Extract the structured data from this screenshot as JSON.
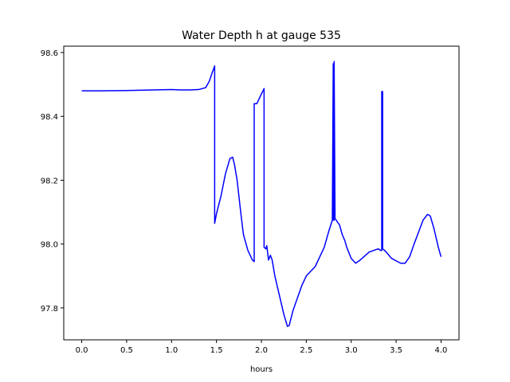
{
  "chart_data": {
    "type": "line",
    "title": "Water Depth h at gauge 535",
    "xlabel": "hours",
    "ylabel": "",
    "xlim": [
      -0.2,
      4.2
    ],
    "ylim": [
      97.7,
      98.62
    ],
    "grid": false,
    "x_ticks": [
      {
        "value": 0.0,
        "label": "0.0"
      },
      {
        "value": 0.5,
        "label": "0.5"
      },
      {
        "value": 1.0,
        "label": "1.0"
      },
      {
        "value": 1.5,
        "label": "1.5"
      },
      {
        "value": 2.0,
        "label": "2.0"
      },
      {
        "value": 2.5,
        "label": "2.5"
      },
      {
        "value": 3.0,
        "label": "3.0"
      },
      {
        "value": 3.5,
        "label": "3.5"
      },
      {
        "value": 4.0,
        "label": "4.0"
      }
    ],
    "y_ticks": [
      {
        "value": 97.8,
        "label": "97.8"
      },
      {
        "value": 98.0,
        "label": "98.0"
      },
      {
        "value": 98.2,
        "label": "98.2"
      },
      {
        "value": 98.4,
        "label": "98.4"
      },
      {
        "value": 98.6,
        "label": "98.6"
      }
    ],
    "series": [
      {
        "color": "#0000ff",
        "x": [
          0.0,
          0.2,
          0.5,
          0.8,
          1.0,
          1.1,
          1.2,
          1.3,
          1.38,
          1.42,
          1.45,
          1.48,
          1.48,
          1.5,
          1.55,
          1.6,
          1.65,
          1.68,
          1.7,
          1.73,
          1.77,
          1.8,
          1.85,
          1.9,
          1.92,
          1.92,
          1.95,
          2.0,
          2.03,
          2.03,
          2.05,
          2.06,
          2.08,
          2.1,
          2.12,
          2.15,
          2.2,
          2.25,
          2.29,
          2.31,
          2.35,
          2.4,
          2.45,
          2.5,
          2.55,
          2.6,
          2.7,
          2.75,
          2.79,
          2.8,
          2.8,
          2.81,
          2.81,
          2.82,
          2.85,
          2.87,
          2.88,
          2.9,
          2.93,
          2.95,
          3.0,
          3.05,
          3.1,
          3.2,
          3.3,
          3.33,
          3.34,
          3.34,
          3.35,
          3.35,
          3.38,
          3.45,
          3.55,
          3.6,
          3.65,
          3.7,
          3.8,
          3.85,
          3.88,
          3.92,
          3.97,
          4.0
        ],
        "y": [
          98.48,
          98.48,
          98.481,
          98.483,
          98.484,
          98.483,
          98.483,
          98.484,
          98.49,
          98.51,
          98.535,
          98.558,
          98.065,
          98.095,
          98.15,
          98.22,
          98.268,
          98.272,
          98.25,
          98.2,
          98.1,
          98.03,
          97.98,
          97.95,
          97.945,
          98.44,
          98.44,
          98.47,
          98.487,
          97.99,
          97.985,
          97.995,
          97.95,
          97.965,
          97.95,
          97.9,
          97.84,
          97.78,
          97.742,
          97.745,
          97.79,
          97.83,
          97.87,
          97.9,
          97.915,
          97.93,
          97.99,
          98.04,
          98.075,
          98.565,
          98.075,
          98.075,
          98.572,
          98.08,
          98.068,
          98.06,
          98.05,
          98.03,
          98.01,
          97.99,
          97.955,
          97.94,
          97.95,
          97.975,
          97.985,
          97.98,
          97.98,
          98.478,
          98.478,
          97.985,
          97.978,
          97.955,
          97.94,
          97.94,
          97.96,
          98.0,
          98.075,
          98.093,
          98.088,
          98.05,
          97.99,
          97.96
        ]
      }
    ]
  }
}
